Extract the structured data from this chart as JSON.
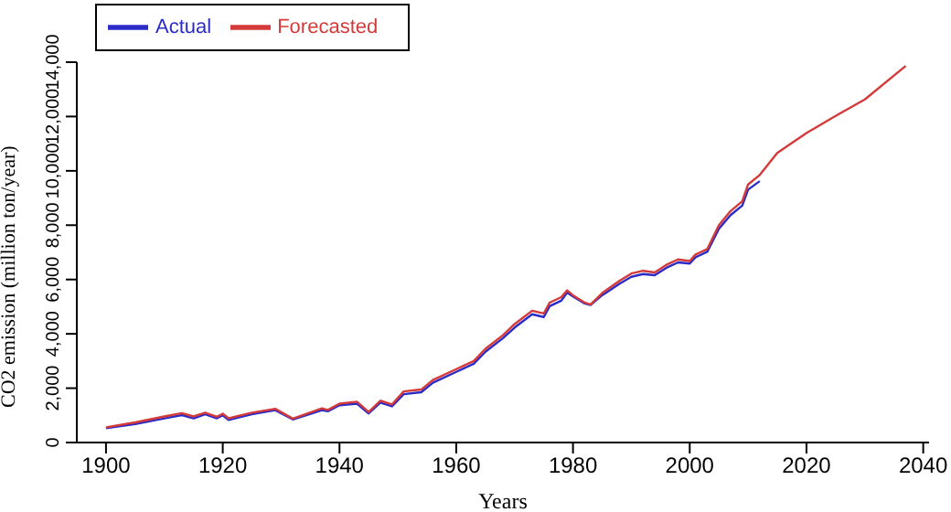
{
  "chart_data": {
    "type": "line",
    "xlabel": "Years",
    "ylabel": "CO2 emission (million ton/year)",
    "series": [
      {
        "name": "Actual",
        "color": "#2b2bc8",
        "x": [
          1900,
          1905,
          1910,
          1913,
          1915,
          1917,
          1919,
          1920,
          1921,
          1925,
          1929,
          1932,
          1937,
          1938,
          1940,
          1943,
          1945,
          1947,
          1949,
          1951,
          1954,
          1956,
          1960,
          1963,
          1965,
          1968,
          1970,
          1973,
          1975,
          1976,
          1978,
          1979,
          1980,
          1982,
          1983,
          1985,
          1988,
          1990,
          1992,
          1994,
          1996,
          1998,
          2000,
          2001,
          2003,
          2005,
          2007,
          2009,
          2010,
          2012
        ],
        "values": [
          530,
          680,
          890,
          1010,
          890,
          1040,
          890,
          1000,
          830,
          1040,
          1190,
          850,
          1190,
          1150,
          1370,
          1430,
          1070,
          1470,
          1330,
          1780,
          1850,
          2200,
          2600,
          2900,
          3340,
          3840,
          4230,
          4720,
          4620,
          5020,
          5220,
          5520,
          5380,
          5120,
          5060,
          5420,
          5850,
          6100,
          6200,
          6160,
          6430,
          6630,
          6590,
          6820,
          7020,
          7870,
          8370,
          8720,
          9310,
          9620
        ]
      },
      {
        "name": "Forecasted",
        "color": "#d43a3a",
        "x": [
          1900,
          1905,
          1910,
          1913,
          1915,
          1917,
          1919,
          1920,
          1921,
          1925,
          1929,
          1932,
          1937,
          1938,
          1940,
          1943,
          1945,
          1947,
          1949,
          1951,
          1954,
          1956,
          1960,
          1963,
          1965,
          1968,
          1970,
          1973,
          1975,
          1976,
          1978,
          1979,
          1980,
          1982,
          1983,
          1985,
          1988,
          1990,
          1992,
          1994,
          1996,
          1998,
          2000,
          2001,
          2003,
          2005,
          2007,
          2009,
          2010,
          2012,
          2015,
          2020,
          2025,
          2030,
          2037
        ],
        "values": [
          560,
          740,
          960,
          1080,
          960,
          1100,
          950,
          1060,
          890,
          1100,
          1240,
          880,
          1260,
          1200,
          1430,
          1500,
          1120,
          1540,
          1400,
          1880,
          1950,
          2300,
          2700,
          3000,
          3450,
          3950,
          4360,
          4850,
          4750,
          5150,
          5350,
          5600,
          5420,
          5150,
          5080,
          5500,
          5960,
          6220,
          6320,
          6260,
          6540,
          6740,
          6680,
          6920,
          7120,
          8000,
          8520,
          8880,
          9500,
          9850,
          10660,
          11390,
          12020,
          12630,
          13860
        ]
      }
    ],
    "xlim": [
      1895,
      2041
    ],
    "xticks": [
      1900,
      1920,
      1940,
      1960,
      1980,
      2000,
      2020,
      2040
    ],
    "ylim": [
      0,
      14000
    ],
    "yticks": [
      0,
      {
        "value": 2000,
        "label": "2,000"
      },
      {
        "value": 4000,
        "label": "4,000"
      },
      {
        "value": 6000,
        "label": "6,000"
      },
      {
        "value": 8000,
        "label": "8,000"
      },
      {
        "value": 10000,
        "label": "10,000"
      },
      {
        "value": 12000,
        "label": "12,000"
      },
      {
        "value": 14000,
        "label": "14,000"
      }
    ],
    "grid": false,
    "legend": "top left",
    "marker": "none",
    "line_style": "solid"
  }
}
